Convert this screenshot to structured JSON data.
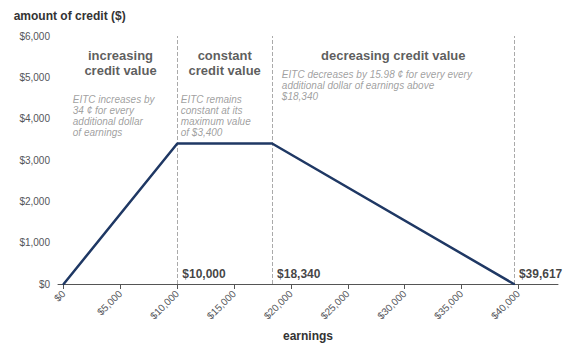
{
  "chart_data": {
    "type": "line",
    "x": [
      0,
      10000,
      18340,
      39617
    ],
    "values": [
      0,
      3400,
      3400,
      0
    ],
    "color": "#1f3864",
    "xlabel": "earnings",
    "ylabel": "amount of credit ($)",
    "xlim": [
      -500,
      43500
    ],
    "ylim": [
      0,
      6000
    ],
    "xticks": [
      {
        "value": 0,
        "label": "$0"
      },
      {
        "value": 5000,
        "label": "$5,000"
      },
      {
        "value": 10000,
        "label": "$10,000"
      },
      {
        "value": 15000,
        "label": "$15,000"
      },
      {
        "value": 20000,
        "label": "$20,000"
      },
      {
        "value": 25000,
        "label": "$25,000"
      },
      {
        "value": 30000,
        "label": "$30,000"
      },
      {
        "value": 35000,
        "label": "$35,000"
      },
      {
        "value": 40000,
        "label": "$40,000"
      }
    ],
    "yticks": [
      {
        "value": 0,
        "label": "$0"
      },
      {
        "value": 1000,
        "label": "$1,000"
      },
      {
        "value": 2000,
        "label": "$2,000"
      },
      {
        "value": 3000,
        "label": "$3,000"
      },
      {
        "value": 4000,
        "label": "$4,000"
      },
      {
        "value": 5000,
        "label": "$5,000"
      },
      {
        "value": 6000,
        "label": "$6,000"
      }
    ],
    "grid": false,
    "vlines": {
      "values": [
        10000,
        18340,
        39617
      ],
      "color": "#aaaaaa",
      "line_style": "dashed"
    },
    "section_titles": {
      "color": "#333333",
      "items": [
        {
          "text": "increasing\ncredit value",
          "x": 5000,
          "y": 5700
        },
        {
          "text": "constant\ncredit value",
          "x": 14170,
          "y": 5700
        },
        {
          "text": "decreasing credit value",
          "x": 29000,
          "y": 5700
        }
      ]
    },
    "section_notes": {
      "color": "#888888",
      "items": [
        {
          "text": "EITC increases by\n34 ¢ for every\nadditional dollar\nof earnings",
          "x": 800,
          "y": 4600
        },
        {
          "text": "EITC remains\nconstant at its\nmaximum value\nof $3,400",
          "x": 10300,
          "y": 4600
        },
        {
          "text": "EITC decreases by 15.98 ¢ for every every\nadditional dollar of earnings above\n$18,340",
          "x": 19200,
          "y": 5200
        }
      ]
    },
    "key_labels": {
      "color": "#111111",
      "items": [
        {
          "text": "$10,000",
          "x": 10000
        },
        {
          "text": "$18,340",
          "x": 18340
        },
        {
          "text": "$39,617",
          "x": 39617
        }
      ]
    }
  }
}
